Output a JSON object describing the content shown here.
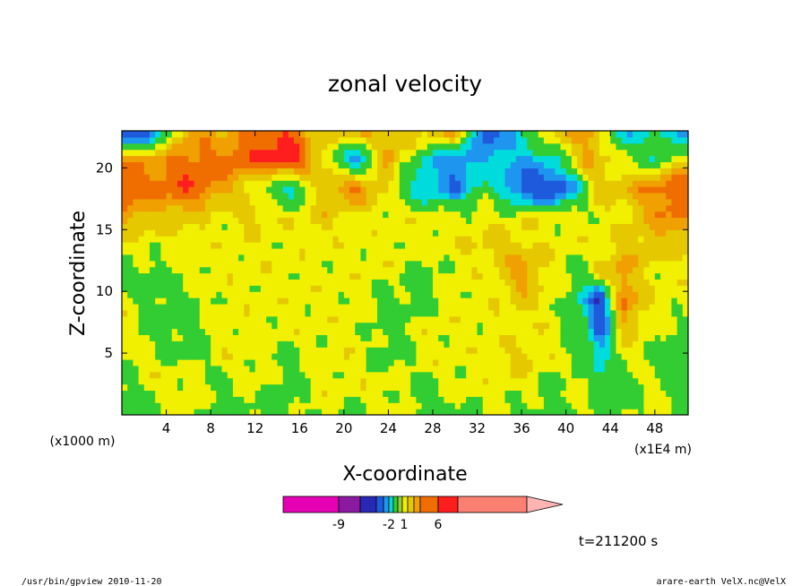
{
  "chart_data": {
    "type": "heatmap",
    "title": "zonal velocity",
    "xlabel": "X-coordinate",
    "ylabel": "Z-coordinate",
    "x_unit_left": "(x1000 m)",
    "x_unit_right": "(x1E4 m)",
    "x_ticks": [
      "4",
      "8",
      "12",
      "16",
      "20",
      "24",
      "28",
      "32",
      "36",
      "40",
      "44",
      "48"
    ],
    "x_tick_values": [
      4,
      8,
      12,
      16,
      20,
      24,
      28,
      32,
      36,
      40,
      44,
      48
    ],
    "y_ticks": [
      "5",
      "10",
      "15",
      "20"
    ],
    "y_tick_values": [
      5,
      10,
      15,
      20
    ],
    "xlim": [
      0,
      51
    ],
    "ylim": [
      0,
      23
    ],
    "colorbar": {
      "labels": [
        "-9",
        "-2",
        "1",
        "6"
      ],
      "label_values": [
        -9,
        -2,
        1,
        6
      ],
      "colors": [
        "#e600b4",
        "#8c1aa0",
        "#2828b4",
        "#1e5adc",
        "#1e96f0",
        "#00dcdc",
        "#32cd32",
        "#9acd32",
        "#f0f000",
        "#e6c800",
        "#f0a000",
        "#f06e00",
        "#ff1e1e",
        "#fa8072",
        "#ffb4b4"
      ]
    },
    "time_label": "t=211200 s",
    "footer_left": "/usr/bin/gpview  2010-11-20",
    "footer_right": "arare-earth_VelX.nc@VelX",
    "contour_grid": {
      "note": "approximate u-velocity field; rows z from 0 to 23, cols x from 0 to 51",
      "z": [
        0,
        2.3,
        4.6,
        6.9,
        9.2,
        11.5,
        13.8,
        16.1,
        18.4,
        20.7,
        23
      ],
      "x": [
        0,
        3,
        6,
        9,
        12,
        15,
        18,
        21,
        24,
        27,
        30,
        33,
        36,
        39,
        42,
        43,
        45,
        48,
        51
      ],
      "values": [
        [
          0,
          0,
          1,
          0,
          0,
          0,
          1,
          0,
          1,
          0,
          0,
          1,
          0,
          0,
          1,
          0,
          0,
          1,
          0
        ],
        [
          0,
          1,
          1,
          0,
          1,
          0,
          1,
          1,
          1,
          0,
          1,
          1,
          1,
          0,
          1,
          -1,
          0,
          1,
          -1
        ],
        [
          1,
          1,
          0,
          1,
          1,
          0,
          1,
          1,
          0,
          1,
          1,
          1,
          2,
          1,
          0,
          -2,
          1,
          0,
          -1
        ],
        [
          1,
          0,
          0,
          1,
          1,
          1,
          1,
          1,
          0,
          1,
          1,
          1,
          1,
          1,
          -1,
          -4,
          2,
          1,
          0
        ],
        [
          1,
          0,
          0,
          1,
          1,
          1,
          1,
          1,
          0,
          0,
          1,
          1,
          2,
          1,
          -2,
          -6,
          4,
          1,
          1
        ],
        [
          0,
          0,
          1,
          1,
          1,
          1,
          1,
          1,
          1,
          0,
          1,
          1,
          3,
          1,
          0,
          2,
          3,
          1,
          1
        ],
        [
          1,
          1,
          1,
          1,
          1,
          1,
          1,
          1,
          1,
          1,
          1,
          2,
          2,
          1,
          1,
          1,
          2,
          2,
          2
        ],
        [
          3,
          2,
          2,
          1,
          2,
          1,
          2,
          1,
          1,
          1,
          1,
          1,
          1,
          1,
          1,
          1,
          1,
          3,
          4
        ],
        [
          5,
          4,
          5,
          3,
          1,
          -2,
          2,
          4,
          1,
          -2,
          -3,
          0,
          -4,
          -5,
          0,
          2,
          2,
          4,
          5
        ],
        [
          3,
          3,
          4,
          4,
          5,
          6,
          2,
          -3,
          3,
          -1,
          -3,
          -2,
          -2,
          -1,
          3,
          2,
          1,
          -1,
          2
        ],
        [
          -6,
          -3,
          3,
          2,
          4,
          5,
          1,
          3,
          2,
          2,
          3,
          -4,
          -1,
          2,
          3,
          2,
          -2,
          -1,
          -3
        ]
      ]
    }
  }
}
